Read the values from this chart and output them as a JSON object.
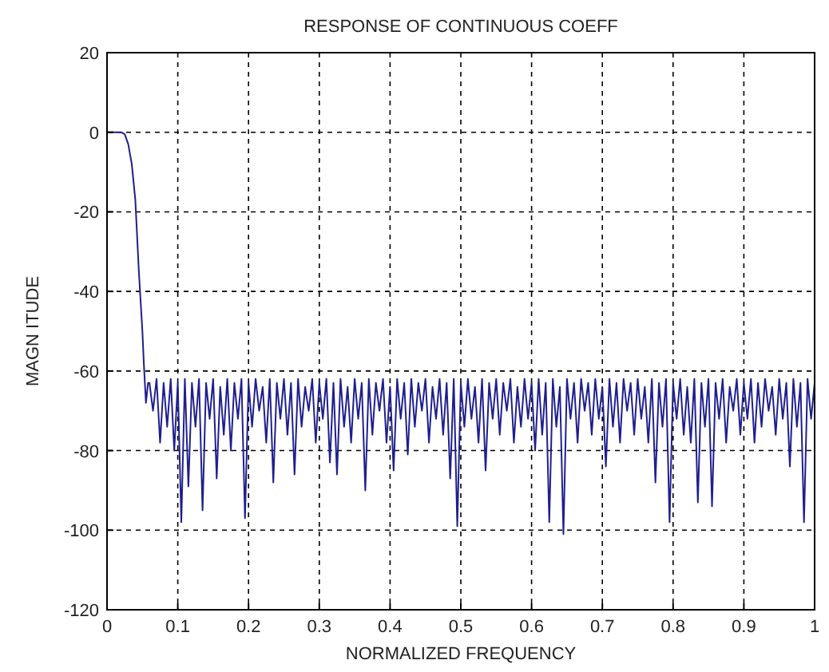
{
  "chart_data": {
    "type": "line",
    "title": "RESPONSE OF CONTINUOUS COEFF",
    "xlabel": "NORMALIZED FREQUENCY",
    "ylabel": "MAGN ITUDE",
    "xlim": [
      0,
      1
    ],
    "ylim": [
      -120,
      20
    ],
    "xticks": [
      0,
      0.1,
      0.2,
      0.3,
      0.4,
      0.5,
      0.6,
      0.7,
      0.8,
      0.9,
      1
    ],
    "yticks": [
      20,
      0,
      -20,
      -40,
      -60,
      -80,
      -100,
      -120
    ],
    "grid": true,
    "line_style": "solid",
    "series": [
      {
        "color": "#1f1f8f",
        "x": [
          0,
          0.01,
          0.02,
          0.025,
          0.03,
          0.035,
          0.04,
          0.045,
          0.05,
          0.052,
          0.055,
          0.058,
          0.06,
          0.065,
          0.07,
          0.075,
          0.08,
          0.085,
          0.09,
          0.095,
          0.1,
          0.105,
          0.11,
          0.115,
          0.12,
          0.125,
          0.13,
          0.135,
          0.14,
          0.145,
          0.15,
          0.155,
          0.16,
          0.165,
          0.17,
          0.175,
          0.18,
          0.185,
          0.19,
          0.195,
          0.2,
          0.205,
          0.21,
          0.215,
          0.22,
          0.225,
          0.23,
          0.235,
          0.24,
          0.245,
          0.25,
          0.255,
          0.26,
          0.265,
          0.27,
          0.275,
          0.28,
          0.285,
          0.29,
          0.295,
          0.3,
          0.305,
          0.31,
          0.315,
          0.32,
          0.325,
          0.33,
          0.335,
          0.34,
          0.345,
          0.35,
          0.355,
          0.36,
          0.365,
          0.37,
          0.375,
          0.38,
          0.385,
          0.39,
          0.395,
          0.4,
          0.405,
          0.41,
          0.415,
          0.42,
          0.425,
          0.43,
          0.435,
          0.44,
          0.445,
          0.45,
          0.455,
          0.46,
          0.465,
          0.47,
          0.475,
          0.48,
          0.485,
          0.49,
          0.495,
          0.5,
          0.505,
          0.51,
          0.515,
          0.52,
          0.525,
          0.53,
          0.535,
          0.54,
          0.545,
          0.55,
          0.555,
          0.56,
          0.565,
          0.57,
          0.575,
          0.58,
          0.585,
          0.59,
          0.595,
          0.6,
          0.605,
          0.61,
          0.615,
          0.62,
          0.625,
          0.63,
          0.635,
          0.64,
          0.645,
          0.65,
          0.655,
          0.66,
          0.665,
          0.67,
          0.675,
          0.68,
          0.685,
          0.69,
          0.695,
          0.7,
          0.705,
          0.71,
          0.715,
          0.72,
          0.725,
          0.73,
          0.735,
          0.74,
          0.745,
          0.75,
          0.755,
          0.76,
          0.765,
          0.77,
          0.775,
          0.78,
          0.785,
          0.79,
          0.795,
          0.8,
          0.805,
          0.81,
          0.815,
          0.82,
          0.825,
          0.83,
          0.835,
          0.84,
          0.845,
          0.85,
          0.855,
          0.86,
          0.865,
          0.87,
          0.875,
          0.88,
          0.885,
          0.89,
          0.895,
          0.9,
          0.905,
          0.91,
          0.915,
          0.92,
          0.925,
          0.93,
          0.935,
          0.94,
          0.945,
          0.95,
          0.955,
          0.96,
          0.965,
          0.97,
          0.975,
          0.98,
          0.985,
          0.99,
          0.995,
          1
        ],
        "values": [
          0,
          0,
          0,
          -0.5,
          -3,
          -8,
          -17,
          -35,
          -50,
          -58,
          -68,
          -63,
          -63,
          -70,
          -62,
          -78,
          -63,
          -74,
          -62,
          -80,
          -63,
          -98,
          -62,
          -89,
          -63,
          -74,
          -62,
          -95,
          -63,
          -72,
          -62,
          -87,
          -64,
          -76,
          -62,
          -80,
          -63,
          -72,
          -62,
          -97,
          -63,
          -74,
          -62,
          -70,
          -64,
          -78,
          -62,
          -88,
          -63,
          -72,
          -62,
          -76,
          -63,
          -86,
          -62,
          -74,
          -64,
          -70,
          -62,
          -78,
          -63,
          -72,
          -62,
          -83,
          -63,
          -86,
          -62,
          -74,
          -64,
          -78,
          -62,
          -72,
          -63,
          -90,
          -62,
          -76,
          -63,
          -70,
          -62,
          -78,
          -64,
          -85,
          -62,
          -72,
          -63,
          -81,
          -62,
          -74,
          -63,
          -70,
          -62,
          -78,
          -64,
          -72,
          -62,
          -76,
          -63,
          -87,
          -62,
          -99,
          -63,
          -74,
          -62,
          -72,
          -64,
          -78,
          -62,
          -85,
          -63,
          -72,
          -62,
          -76,
          -63,
          -70,
          -62,
          -78,
          -64,
          -74,
          -62,
          -72,
          -63,
          -80,
          -62,
          -76,
          -63,
          -98,
          -62,
          -74,
          -64,
          -101,
          -62,
          -72,
          -63,
          -78,
          -62,
          -70,
          -63,
          -76,
          -62,
          -72,
          -64,
          -84,
          -62,
          -74,
          -63,
          -78,
          -62,
          -70,
          -63,
          -76,
          -62,
          -72,
          -64,
          -78,
          -62,
          -88,
          -63,
          -74,
          -62,
          -98,
          -63,
          -72,
          -62,
          -76,
          -64,
          -78,
          -62,
          -93,
          -63,
          -74,
          -62,
          -94,
          -63,
          -72,
          -62,
          -78,
          -64,
          -70,
          -62,
          -76,
          -63,
          -72,
          -62,
          -78,
          -63,
          -74,
          -62,
          -70,
          -64,
          -76,
          -62,
          -72,
          -63,
          -84,
          -62,
          -74,
          -63,
          -98,
          -62,
          -72,
          -63
        ]
      }
    ]
  }
}
